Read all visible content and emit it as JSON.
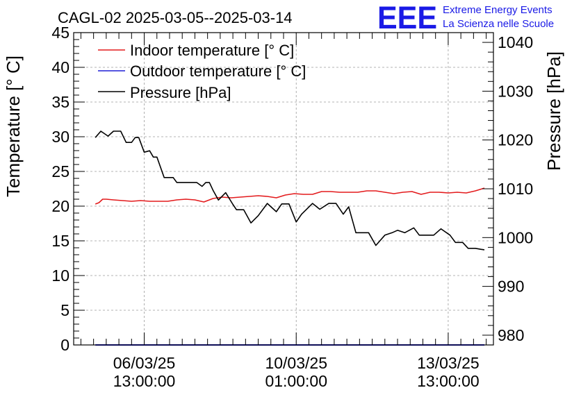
{
  "chart_data": {
    "type": "line",
    "title": "CAGL-02 2025-03-05--2025-03-14",
    "ylabel": "Temperature [° C]",
    "y2label": "Pressure [hPa]",
    "ylim": [
      0,
      45
    ],
    "y2lim": [
      978,
      1042
    ],
    "y_ticks": [
      "0",
      "5",
      "10",
      "15",
      "20",
      "25",
      "30",
      "35",
      "40",
      "45"
    ],
    "y2_ticks": [
      "980",
      "990",
      "1000",
      "1010",
      "1020",
      "1030",
      "1040"
    ],
    "x_unit": "hours since 2025-03-05 00:00",
    "xlim": [
      -2,
      230
    ],
    "x_ticks": [
      {
        "x": 37,
        "date": "06/03/25",
        "time": "13:00:00"
      },
      {
        "x": 121,
        "date": "10/03/25",
        "time": "01:00:00"
      },
      {
        "x": 205,
        "date": "13/03/25",
        "time": "13:00:00"
      }
    ],
    "grid": true,
    "legend_position": "top-left",
    "series": [
      {
        "name": "Indoor temperature [° C]",
        "color": "#e31a1c",
        "axis": "left",
        "x": [
          10,
          12,
          14,
          16,
          20,
          25,
          30,
          35,
          40,
          45,
          50,
          55,
          60,
          65,
          70,
          75,
          80,
          85,
          90,
          95,
          100,
          105,
          110,
          115,
          120,
          125,
          130,
          135,
          140,
          145,
          150,
          155,
          160,
          165,
          170,
          175,
          180,
          185,
          190,
          195,
          200,
          205,
          210,
          215,
          220,
          225
        ],
        "values": [
          20.3,
          20.5,
          21.0,
          21.0,
          20.9,
          20.8,
          20.7,
          20.8,
          20.7,
          20.7,
          20.7,
          20.9,
          21.0,
          20.9,
          20.6,
          21.1,
          21.3,
          21.2,
          21.3,
          21.4,
          21.5,
          21.4,
          21.2,
          21.6,
          21.8,
          21.7,
          21.7,
          22.1,
          22.1,
          22.0,
          22.0,
          22.0,
          22.2,
          22.2,
          22.0,
          21.8,
          22.0,
          22.1,
          21.7,
          22.0,
          22.0,
          21.9,
          22.0,
          21.9,
          22.2,
          22.6
        ]
      },
      {
        "name": "Outdoor temperature [° C]",
        "color": "#1f1fd6",
        "axis": "left",
        "x": [
          10,
          225
        ],
        "values": [
          0,
          0
        ]
      },
      {
        "name": "Pressure [hPa]",
        "color": "#000000",
        "axis": "right",
        "x": [
          10,
          13,
          17,
          20,
          24,
          27,
          30,
          32,
          34,
          37,
          40,
          42,
          44,
          48,
          50,
          53,
          55,
          60,
          64,
          66,
          69,
          71,
          73,
          75,
          78,
          82,
          86,
          88,
          92,
          96,
          100,
          105,
          110,
          113,
          117,
          121,
          124,
          130,
          134,
          139,
          143,
          147,
          150,
          154,
          157,
          161,
          165,
          170,
          174,
          177,
          181,
          186,
          189,
          193,
          197,
          201,
          206,
          209,
          213,
          216,
          220,
          223,
          225
        ],
        "values": [
          1020.5,
          1021.8,
          1020.8,
          1021.8,
          1021.8,
          1019.5,
          1019.5,
          1020.5,
          1020.5,
          1017.5,
          1017.8,
          1016.5,
          1016.5,
          1012.3,
          1012.3,
          1012.3,
          1011.3,
          1011.3,
          1011.3,
          1011.3,
          1010.5,
          1011.3,
          1011.3,
          1009.7,
          1007.7,
          1009.2,
          1006.8,
          1005.7,
          1005.7,
          1003.0,
          1004.5,
          1007.0,
          1005.3,
          1006.9,
          1006.9,
          1003.2,
          1004.8,
          1007.0,
          1005.8,
          1007.0,
          1007.0,
          1004.8,
          1006.3,
          1001.0,
          1001.0,
          1001.0,
          998.4,
          1000.5,
          1001.0,
          1001.5,
          1001.0,
          1002.0,
          1000.5,
          1000.5,
          1000.5,
          1001.8,
          1000.5,
          999.0,
          999.0,
          997.8,
          997.8,
          997.6,
          997.5
        ]
      }
    ]
  },
  "logo": {
    "mark": "EEE",
    "line1": "Extreme Energy Events",
    "line2": "La Scienza nelle Scuole"
  }
}
